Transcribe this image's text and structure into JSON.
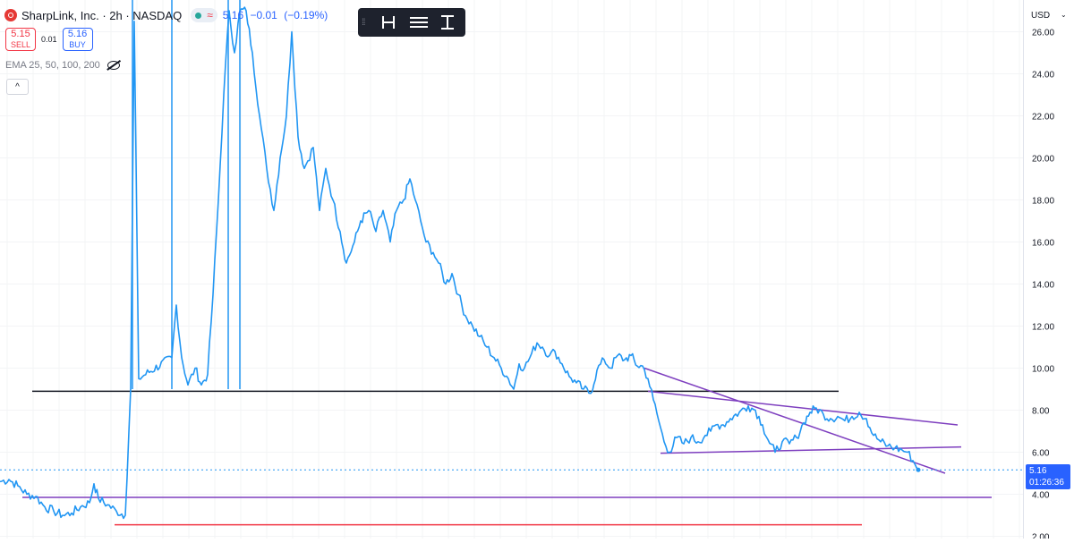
{
  "header": {
    "symbol": "SharpLink, Inc. · 2h · NASDAQ",
    "last": "5.16",
    "change": "−0.01",
    "change_pct": "(−0.19%)"
  },
  "trade": {
    "sell_price": "5.15",
    "sell_label": "SELL",
    "spread": "0.01",
    "buy_price": "5.16",
    "buy_label": "BUY"
  },
  "indicator": {
    "label": "EMA 25, 50, 100, 200"
  },
  "currency": "USD",
  "price_tag": {
    "price": "5.16",
    "countdown": "01:26:36"
  },
  "colors": {
    "line": "#2196f3",
    "black_line": "#131722",
    "purple": "#7e3fbf",
    "red": "#f23645",
    "accent": "#2962ff"
  },
  "chart_data": {
    "type": "line",
    "x_type": "time-index",
    "ylim": [
      2.0,
      26.5
    ],
    "yticks": [
      "2.00",
      "4.00",
      "6.00",
      "8.00",
      "10.00",
      "12.00",
      "14.00",
      "16.00",
      "18.00",
      "20.00",
      "22.00",
      "24.00",
      "26.00"
    ],
    "series": [
      {
        "points": [
          [
            0,
            4.6
          ],
          [
            10,
            4.7
          ],
          [
            20,
            4.4
          ],
          [
            30,
            4.0
          ],
          [
            40,
            3.9
          ],
          [
            50,
            3.4
          ],
          [
            60,
            3.2
          ],
          [
            70,
            3.0
          ],
          [
            80,
            3.1
          ],
          [
            90,
            3.4
          ],
          [
            100,
            3.6
          ],
          [
            105,
            4.5
          ],
          [
            110,
            3.8
          ],
          [
            120,
            3.5
          ],
          [
            130,
            3.2
          ],
          [
            140,
            3.0
          ],
          [
            146,
            9.0
          ],
          [
            150,
            26.5
          ],
          [
            155,
            9.5
          ],
          [
            192,
            10.5
          ],
          [
            197,
            13.0
          ],
          [
            203,
            10.5
          ],
          [
            210,
            9.2
          ],
          [
            218,
            10.0
          ],
          [
            225,
            9.2
          ],
          [
            232,
            9.7
          ],
          [
            238,
            13.5
          ],
          [
            244,
            18.0
          ],
          [
            250,
            23.0
          ],
          [
            256,
            27.0
          ],
          [
            262,
            25.0
          ],
          [
            268,
            27.0
          ],
          [
            275,
            27.0
          ],
          [
            282,
            25.0
          ],
          [
            290,
            22.0
          ],
          [
            298,
            19.5
          ],
          [
            306,
            17.5
          ],
          [
            313,
            20.0
          ],
          [
            320,
            22.0
          ],
          [
            326,
            26.0
          ],
          [
            333,
            21.0
          ],
          [
            340,
            19.5
          ],
          [
            350,
            20.5
          ],
          [
            357,
            17.5
          ],
          [
            364,
            19.5
          ],
          [
            372,
            18.0
          ],
          [
            380,
            16.5
          ],
          [
            387,
            15.0
          ],
          [
            396,
            16.0
          ],
          [
            403,
            17.0
          ],
          [
            412,
            17.5
          ],
          [
            420,
            16.5
          ],
          [
            428,
            17.5
          ],
          [
            436,
            16.0
          ],
          [
            443,
            17.5
          ],
          [
            451,
            18.0
          ],
          [
            458,
            19.0
          ],
          [
            464,
            18.0
          ],
          [
            470,
            17.0
          ],
          [
            476,
            16.0
          ],
          [
            484,
            15.5
          ],
          [
            490,
            15.0
          ],
          [
            498,
            14.0
          ],
          [
            505,
            14.5
          ],
          [
            512,
            13.5
          ],
          [
            520,
            12.5
          ],
          [
            528,
            12.0
          ],
          [
            536,
            11.5
          ],
          [
            544,
            11.0
          ],
          [
            552,
            10.5
          ],
          [
            560,
            10.0
          ],
          [
            568,
            9.5
          ],
          [
            574,
            9.0
          ],
          [
            580,
            10.2
          ],
          [
            586,
            10.0
          ],
          [
            592,
            10.5
          ],
          [
            600,
            11.2
          ],
          [
            606,
            11.0
          ],
          [
            614,
            10.6
          ],
          [
            620,
            10.8
          ],
          [
            628,
            10.2
          ],
          [
            636,
            9.6
          ],
          [
            644,
            9.3
          ],
          [
            652,
            9.0
          ],
          [
            660,
            8.8
          ],
          [
            667,
            9.9
          ],
          [
            675,
            10.4
          ],
          [
            682,
            10.0
          ],
          [
            690,
            10.6
          ],
          [
            698,
            10.4
          ],
          [
            705,
            10.6
          ],
          [
            712,
            10.1
          ],
          [
            718,
            10.1
          ],
          [
            724,
            9.5
          ],
          [
            730,
            8.5
          ],
          [
            736,
            7.5
          ],
          [
            742,
            6.5
          ],
          [
            748,
            6.0
          ],
          [
            756,
            6.7
          ],
          [
            764,
            6.4
          ],
          [
            772,
            6.7
          ],
          [
            780,
            6.5
          ],
          [
            788,
            6.8
          ],
          [
            794,
            7.0
          ],
          [
            800,
            7.3
          ],
          [
            808,
            7.3
          ],
          [
            816,
            7.6
          ],
          [
            826,
            7.9
          ],
          [
            836,
            8.2
          ],
          [
            844,
            8.0
          ],
          [
            852,
            7.3
          ],
          [
            858,
            6.6
          ],
          [
            866,
            6.0
          ],
          [
            874,
            6.5
          ],
          [
            882,
            6.4
          ],
          [
            890,
            6.7
          ],
          [
            898,
            7.4
          ],
          [
            905,
            7.9
          ],
          [
            912,
            8.1
          ],
          [
            920,
            7.8
          ],
          [
            928,
            7.6
          ],
          [
            936,
            7.7
          ],
          [
            944,
            7.5
          ],
          [
            952,
            7.7
          ],
          [
            960,
            7.9
          ],
          [
            968,
            7.6
          ],
          [
            976,
            6.8
          ],
          [
            984,
            6.5
          ],
          [
            992,
            6.3
          ],
          [
            1000,
            6.2
          ],
          [
            1008,
            6.1
          ],
          [
            1014,
            6.0
          ],
          [
            1020,
            5.6
          ],
          [
            1026,
            5.16
          ]
        ]
      }
    ],
    "trendlines": [
      {
        "color": "black",
        "from": [
          36,
          8.9
        ],
        "to": [
          937,
          8.9
        ]
      },
      {
        "color": "purple",
        "from": [
          25,
          3.85
        ],
        "to": [
          1108,
          3.85
        ]
      },
      {
        "color": "red",
        "from": [
          128,
          2.55
        ],
        "to": [
          963,
          2.55
        ]
      },
      {
        "color": "purple",
        "from": [
          720,
          10.0
        ],
        "to": [
          1056,
          5.0
        ]
      },
      {
        "color": "purple",
        "from": [
          724,
          8.9
        ],
        "to": [
          1070,
          7.3
        ]
      },
      {
        "color": "purple",
        "from": [
          738,
          5.95
        ],
        "to": [
          1074,
          6.25
        ]
      }
    ],
    "vertical_markers": [
      148,
      192,
      255,
      268
    ]
  }
}
